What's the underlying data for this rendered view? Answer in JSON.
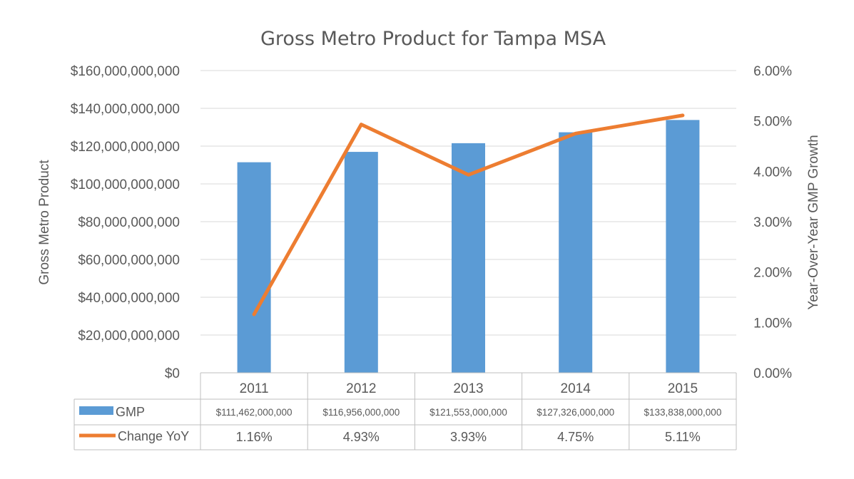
{
  "chart_data": {
    "type": "bar",
    "title": "Gross Metro Product for Tampa MSA",
    "ylabel": "Gross Metro Product",
    "y2label": "Year-Over-Year GMP Growth",
    "categories": [
      "2011",
      "2012",
      "2013",
      "2014",
      "2015"
    ],
    "ylim": [
      0,
      160000000000
    ],
    "y_ticks": [
      "$0",
      "$20,000,000,000",
      "$40,000,000,000",
      "$60,000,000,000",
      "$80,000,000,000",
      "$100,000,000,000",
      "$120,000,000,000",
      "$140,000,000,000",
      "$160,000,000,000"
    ],
    "y2lim": [
      0,
      0.06
    ],
    "y2_ticks": [
      "0.00%",
      "1.00%",
      "2.00%",
      "3.00%",
      "4.00%",
      "5.00%",
      "6.00%"
    ],
    "grid": true,
    "series": [
      {
        "name": "GMP",
        "type": "bar",
        "axis": "left",
        "color": "#5B9BD5",
        "values": [
          111462000000,
          116956000000,
          121553000000,
          127326000000,
          133838000000
        ],
        "labels": [
          "$111,462,000,000",
          "$116,956,000,000",
          "$121,553,000,000",
          "$127,326,000,000",
          "$133,838,000,000"
        ]
      },
      {
        "name": "Change YoY",
        "type": "line",
        "axis": "right",
        "color": "#ED7D31",
        "values": [
          0.0116,
          0.0493,
          0.0393,
          0.0475,
          0.0511
        ],
        "labels": [
          "1.16%",
          "4.93%",
          "3.93%",
          "4.75%",
          "5.11%"
        ]
      }
    ]
  }
}
